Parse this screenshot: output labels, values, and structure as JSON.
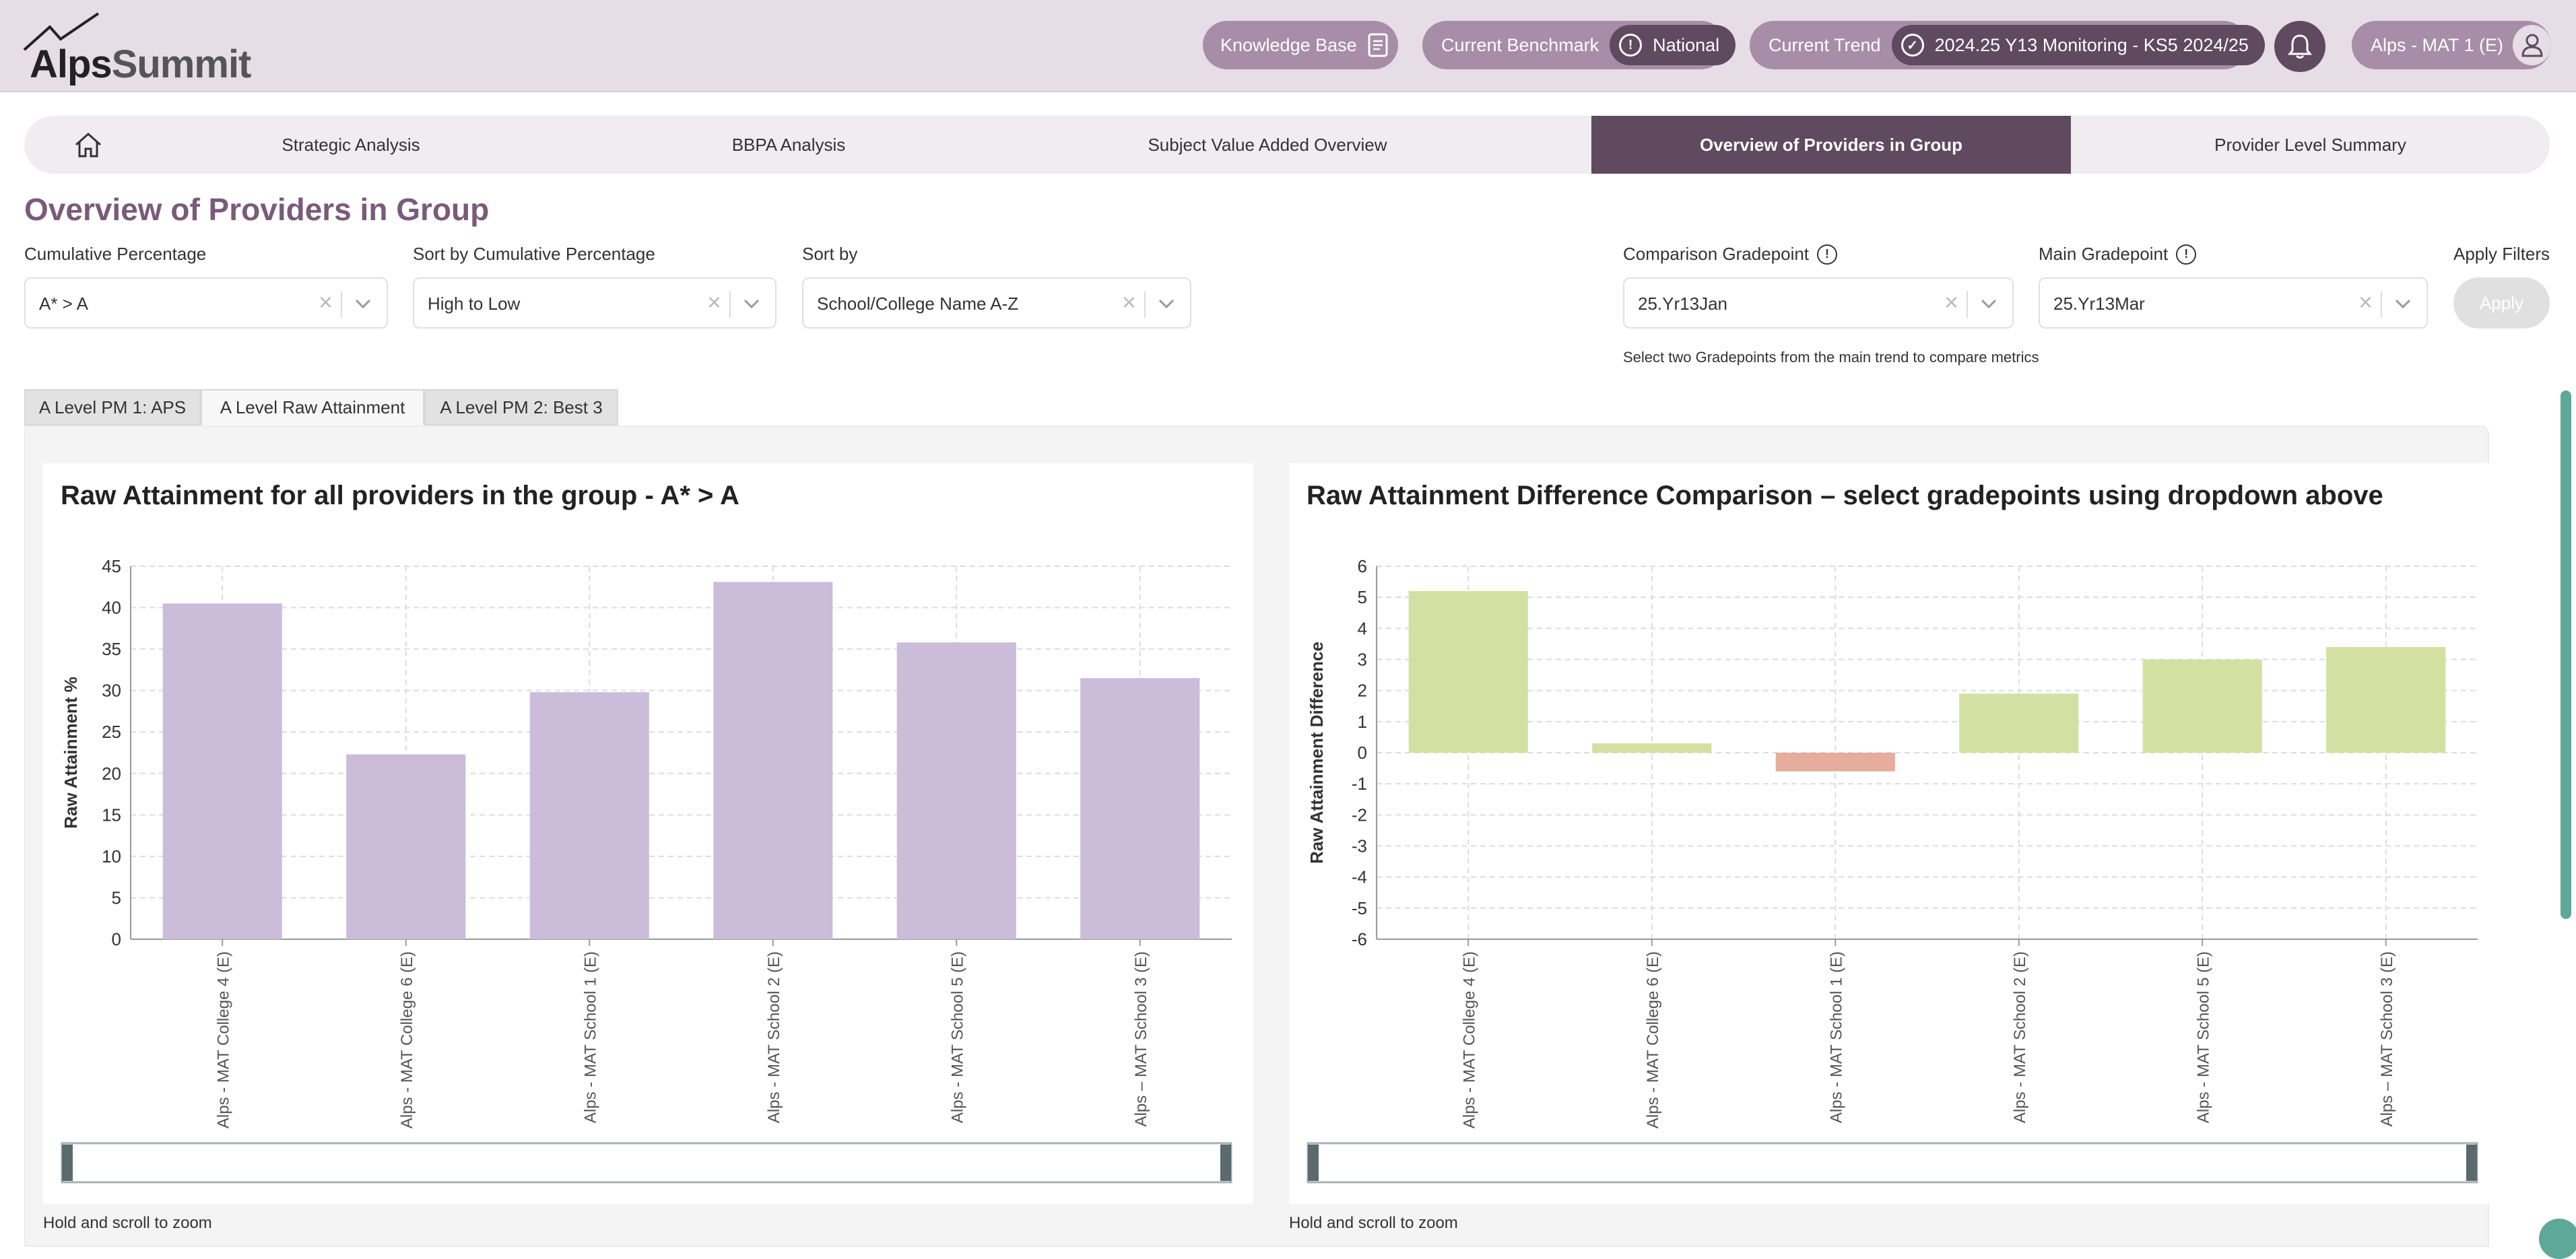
{
  "brand": {
    "part1": "Alps",
    "part2": "Summit"
  },
  "header": {
    "knowledge_base": "Knowledge Base",
    "benchmark_label": "Current Benchmark",
    "benchmark_value": "National",
    "trend_label": "Current Trend",
    "trend_value": "2024.25 Y13 Monitoring - KS5 2024/25",
    "user": "Alps - MAT 1 (E)"
  },
  "nav": {
    "items": [
      "Strategic Analysis",
      "BBPA Analysis",
      "Subject Value Added Overview",
      "Overview of Providers in Group",
      "Provider Level Summary"
    ],
    "active": "Overview of Providers in Group"
  },
  "page_title": "Overview of Providers in Group",
  "filters": {
    "cumulative": {
      "label": "Cumulative Percentage",
      "value": "A* > A"
    },
    "sort_cumulative": {
      "label": "Sort by Cumulative Percentage",
      "value": "High to Low"
    },
    "sort_by": {
      "label": "Sort by",
      "value": "School/College Name A-Z"
    },
    "comparison": {
      "label": "Comparison Gradepoint",
      "value": "25.Yr13Jan"
    },
    "main": {
      "label": "Main Gradepoint",
      "value": "25.Yr13Mar"
    },
    "apply_label": "Apply Filters",
    "apply_button": "Apply",
    "hint": "Select two Gradepoints from the main trend to compare metrics"
  },
  "tabs": [
    "A Level PM 1: APS",
    "A Level Raw Attainment",
    "A Level PM 2: Best 3"
  ],
  "active_tab": "A Level Raw Attainment",
  "zoom_hint": "Hold and scroll to zoom",
  "colors": {
    "bar_main": "#cbbdd9",
    "positive": "#d2e1a2",
    "negative": "#e6ac9c",
    "accent": "#5f4a5f"
  },
  "chart_data": [
    {
      "type": "bar",
      "title": "Raw Attainment for all providers in the group - A* > A",
      "xlabel": "",
      "ylabel": "Raw Attainment %",
      "ylim": [
        0,
        45
      ],
      "yticks": [
        0,
        5,
        10,
        15,
        20,
        25,
        30,
        35,
        40,
        45
      ],
      "grid": true,
      "categories": [
        "Alps - MAT College 4 (E)",
        "Alps - MAT College 6 (E)",
        "Alps - MAT School 1 (E)",
        "Alps - MAT School 2 (E)",
        "Alps - MAT School 5 (E)",
        "Alps – MAT School 3 (E)"
      ],
      "values": [
        40.5,
        22.3,
        29.8,
        43.1,
        35.8,
        31.5
      ]
    },
    {
      "type": "bar",
      "title": "Raw Attainment Difference Comparison – select gradepoints using dropdown above",
      "xlabel": "",
      "ylabel": "Raw Attainment Difference",
      "ylim": [
        -6,
        6
      ],
      "yticks": [
        -6,
        -5,
        -4,
        -3,
        -2,
        -1,
        0,
        1,
        2,
        3,
        4,
        5,
        6
      ],
      "grid": true,
      "categories": [
        "Alps - MAT College 4 (E)",
        "Alps - MAT College 6 (E)",
        "Alps - MAT School 1 (E)",
        "Alps - MAT School 2 (E)",
        "Alps - MAT School 5 (E)",
        "Alps – MAT School 3 (E)"
      ],
      "values": [
        5.2,
        0.3,
        -0.6,
        1.9,
        3.0,
        3.4
      ]
    }
  ]
}
